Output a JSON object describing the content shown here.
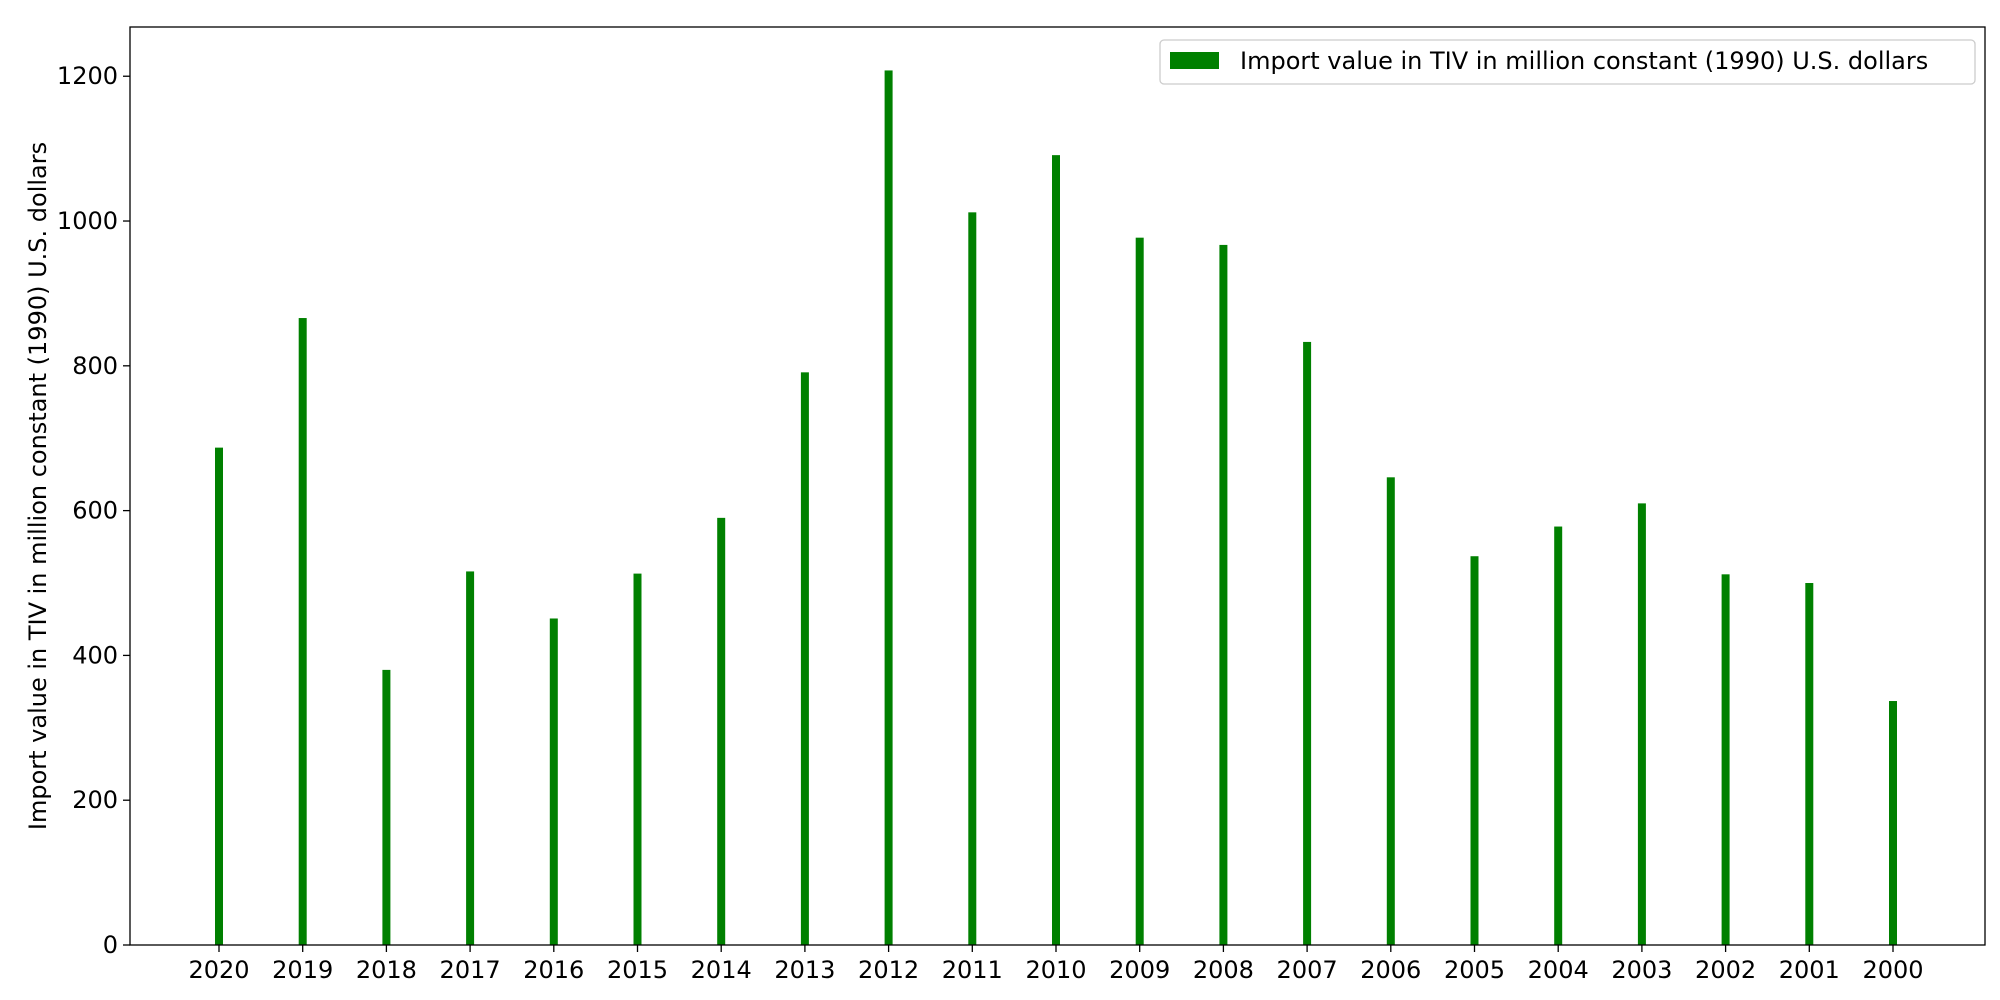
{
  "chart_data": {
    "type": "bar",
    "categories": [
      "2020",
      "2019",
      "2018",
      "2017",
      "2016",
      "2015",
      "2014",
      "2013",
      "2012",
      "2011",
      "2010",
      "2009",
      "2008",
      "2007",
      "2006",
      "2005",
      "2004",
      "2003",
      "2002",
      "2001",
      "2000"
    ],
    "series": [
      {
        "name": "Import value in TIV in million constant (1990) U.S. dollars",
        "color": "#008000",
        "values": [
          687,
          866,
          380,
          516,
          451,
          513,
          590,
          791,
          1208,
          1012,
          1091,
          977,
          967,
          833,
          646,
          537,
          578,
          610,
          512,
          500,
          337
        ]
      }
    ],
    "title": "",
    "xlabel": "",
    "ylabel": "Import value in TIV in million constant (1990) U.S. dollars",
    "ylim": [
      0,
      1268
    ],
    "yticks": [
      0,
      200,
      400,
      600,
      800,
      1000,
      1200
    ],
    "grid": false,
    "legend_position": "top-right"
  }
}
